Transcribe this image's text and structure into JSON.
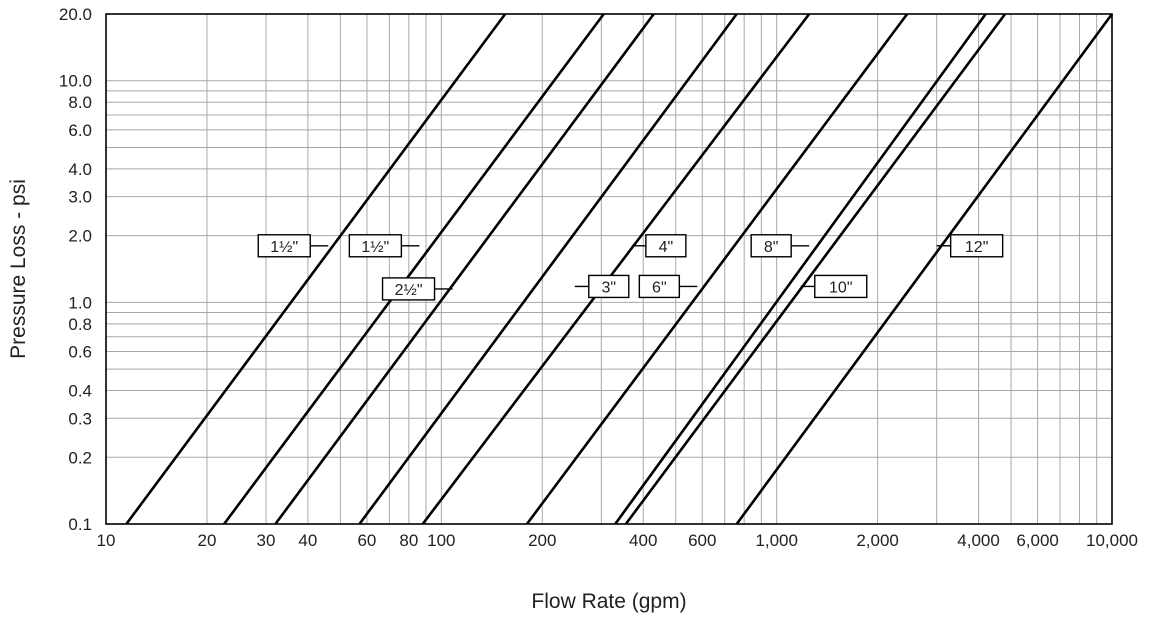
{
  "chart_data": {
    "type": "line",
    "xlabel": "Flow Rate (gpm)",
    "ylabel": "Pressure Loss - psi",
    "x_scale": "log",
    "y_scale": "log",
    "xlim": [
      10,
      10000
    ],
    "ylim": [
      0.1,
      20
    ],
    "grid": true,
    "x_ticks": [
      {
        "value": 10,
        "label": "10"
      },
      {
        "value": 20,
        "label": "20"
      },
      {
        "value": 30,
        "label": "30"
      },
      {
        "value": 40,
        "label": "40"
      },
      {
        "value": 60,
        "label": "60"
      },
      {
        "value": 80,
        "label": "80"
      },
      {
        "value": 100,
        "label": "100"
      },
      {
        "value": 200,
        "label": "200"
      },
      {
        "value": 400,
        "label": "400"
      },
      {
        "value": 600,
        "label": "600"
      },
      {
        "value": 1000,
        "label": "1,000"
      },
      {
        "value": 2000,
        "label": "2,000"
      },
      {
        "value": 4000,
        "label": "4,000"
      },
      {
        "value": 6000,
        "label": "6,000"
      },
      {
        "value": 10000,
        "label": "10,000"
      }
    ],
    "x_minor_grid": [
      50,
      70,
      90,
      300,
      500,
      700,
      800,
      900,
      3000,
      5000,
      7000,
      8000,
      9000
    ],
    "y_ticks": [
      {
        "value": 0.1,
        "label": "0.1"
      },
      {
        "value": 0.2,
        "label": "0.2"
      },
      {
        "value": 0.3,
        "label": "0.3"
      },
      {
        "value": 0.4,
        "label": "0.4"
      },
      {
        "value": 0.6,
        "label": "0.6"
      },
      {
        "value": 0.8,
        "label": "0.8"
      },
      {
        "value": 1.0,
        "label": "1.0"
      },
      {
        "value": 2.0,
        "label": "2.0"
      },
      {
        "value": 3.0,
        "label": "3.0"
      },
      {
        "value": 4.0,
        "label": "4.0"
      },
      {
        "value": 6.0,
        "label": "6.0"
      },
      {
        "value": 8.0,
        "label": "8.0"
      },
      {
        "value": 10.0,
        "label": "10.0"
      },
      {
        "value": 20.0,
        "label": "20.0"
      }
    ],
    "y_minor_grid": [
      0.5,
      0.7,
      0.9,
      5.0,
      7.0,
      9.0
    ],
    "series": [
      {
        "name": "1½\"",
        "points": [
          [
            11.5,
            0.1
          ],
          [
            155,
            20
          ]
        ],
        "label_at": [
          46,
          1.8
        ]
      },
      {
        "name": "1½\"",
        "points": [
          [
            22.5,
            0.1
          ],
          [
            305,
            20
          ]
        ],
        "label_at": [
          86,
          1.8
        ]
      },
      {
        "name": "2½\"",
        "points": [
          [
            32,
            0.1
          ],
          [
            430,
            20
          ]
        ],
        "label_at": [
          108,
          1.15
        ]
      },
      {
        "name": "3\"",
        "points": [
          [
            57,
            0.1
          ],
          [
            760,
            20
          ]
        ],
        "label_at": [
          250,
          1.18
        ]
      },
      {
        "name": "4\"",
        "points": [
          [
            88,
            0.1
          ],
          [
            1250,
            20
          ]
        ],
        "label_at": [
          370,
          1.8
        ]
      },
      {
        "name": "6\"",
        "points": [
          [
            180,
            0.1
          ],
          [
            2450,
            20
          ]
        ],
        "label_at": [
          580,
          1.18
        ]
      },
      {
        "name": "8\"",
        "points": [
          [
            330,
            0.1
          ],
          [
            4200,
            20
          ]
        ],
        "label_at": [
          1250,
          1.8
        ]
      },
      {
        "name": "10\"",
        "points": [
          [
            355,
            0.1
          ],
          [
            4800,
            20
          ]
        ],
        "label_at": [
          1180,
          1.18
        ]
      },
      {
        "name": "12\"",
        "points": [
          [
            760,
            0.1
          ],
          [
            10000,
            20
          ]
        ],
        "label_at": [
          3000,
          1.8
        ]
      }
    ]
  }
}
